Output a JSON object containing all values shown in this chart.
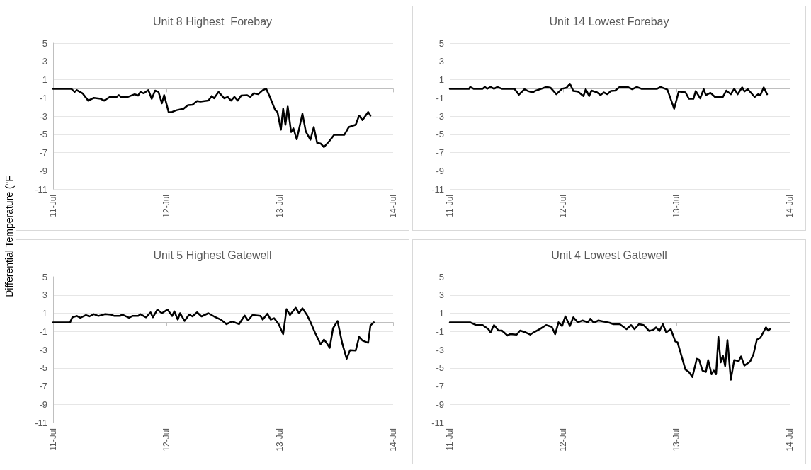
{
  "chart_data": [
    {
      "type": "line",
      "title": "Unit 8 Highest  Forebay",
      "ylabel": "Differential Temperature (°F",
      "xlim": [
        "--07-11",
        "--07-14"
      ],
      "xticks": [
        {
          "value": "--07-11",
          "label": "11-Jul"
        },
        {
          "value": "--07-12",
          "label": "12-Jul"
        },
        {
          "value": "--07-13",
          "label": "13-Jul"
        },
        {
          "value": "--07-14",
          "label": "14-Jul"
        }
      ],
      "ylim": [
        -11,
        5
      ],
      "yticks": [
        -11,
        -9,
        -7,
        -5,
        -3,
        -1,
        1,
        3,
        5
      ],
      "grid": "y",
      "marker": "none",
      "line_style": "solid",
      "series": [
        {
          "color": "#000000",
          "x": [
            "--07-11T00:00",
            "--07-11T03:50",
            "--07-11T04:34",
            "--07-11T05:02",
            "--07-11T06:14",
            "--07-11T07:26",
            "--07-11T08:38",
            "--07-11T10:05",
            "--07-11T10:48",
            "--07-11T12:00",
            "--07-11T13:26",
            "--07-11T13:55",
            "--07-11T14:24",
            "--07-11T15:50",
            "--07-11T17:17",
            "--07-11T18:00",
            "--07-11T18:29",
            "--07-11T19:12",
            "--07-11T20:10",
            "--07-11T20:53",
            "--07-11T21:36",
            "--07-11T22:19",
            "--07-11T23:02",
            "--07-11T23:31",
            "--07-12T00:29",
            "--07-12T01:12",
            "--07-12T02:10",
            "--07-12T03:36",
            "--07-12T04:34",
            "--07-12T05:31",
            "--07-12T06:29",
            "--07-12T07:12",
            "--07-12T08:53",
            "--07-12T09:36",
            "--07-12T10:05",
            "--07-12T11:02",
            "--07-12T12:14",
            "--07-12T12:58",
            "--07-12T13:41",
            "--07-12T14:24",
            "--07-12T15:07",
            "--07-12T15:50",
            "--07-12T17:02",
            "--07-12T17:46",
            "--07-12T18:29",
            "--07-12T19:26",
            "--07-12T20:24",
            "--07-12T21:07",
            "--07-12T21:50",
            "--07-12T23:02",
            "--07-12T23:31",
            "--07-13T00:14",
            "--07-13T00:43",
            "--07-13T01:12",
            "--07-13T01:41",
            "--07-13T02:24",
            "--07-13T02:53",
            "--07-13T03:36",
            "--07-13T04:48",
            "--07-13T05:31",
            "--07-13T06:29",
            "--07-13T07:12",
            "--07-13T07:55",
            "--07-13T08:38",
            "--07-13T09:22",
            "--07-13T10:34",
            "--07-13T11:31",
            "--07-13T13:41",
            "--07-13T14:38",
            "--07-13T16:05",
            "--07-13T16:48",
            "--07-13T17:31",
            "--07-13T18:43",
            "--07-13T19:12"
          ],
          "values": [
            0,
            0,
            -0.35,
            -0.15,
            -0.5,
            -1.3,
            -1.0,
            -1.1,
            -1.3,
            -0.9,
            -0.9,
            -0.7,
            -0.9,
            -0.9,
            -0.6,
            -0.75,
            -0.35,
            -0.5,
            -0.15,
            -1.1,
            -0.2,
            -0.35,
            -1.6,
            -0.7,
            -2.6,
            -2.55,
            -2.35,
            -2.2,
            -1.8,
            -1.75,
            -1.35,
            -1.4,
            -1.3,
            -0.8,
            -1.05,
            -0.35,
            -1.05,
            -0.9,
            -1.3,
            -0.9,
            -1.3,
            -0.75,
            -0.7,
            -0.9,
            -0.5,
            -0.6,
            -0.15,
            0,
            -0.8,
            -2.35,
            -2.55,
            -4.5,
            -2.2,
            -3.95,
            -1.95,
            -4.75,
            -4.35,
            -5.55,
            -2.75,
            -4.7,
            -5.6,
            -4.2,
            -5.95,
            -6.0,
            -6.4,
            -5.7,
            -5.05,
            -5.05,
            -4.2,
            -3.95,
            -2.95,
            -3.45,
            -2.55,
            -2.95
          ]
        }
      ]
    },
    {
      "type": "line",
      "title": "Unit 14 Lowest Forebay",
      "xlim": [
        "--07-11",
        "--07-14"
      ],
      "xticks": [
        {
          "value": "--07-11",
          "label": "11-Jul"
        },
        {
          "value": "--07-12",
          "label": "12-Jul"
        },
        {
          "value": "--07-13",
          "label": "13-Jul"
        },
        {
          "value": "--07-14",
          "label": "14-Jul"
        }
      ],
      "ylim": [
        -11,
        5
      ],
      "yticks": [
        -11,
        -9,
        -7,
        -5,
        -3,
        -1,
        1,
        3,
        5
      ],
      "grid": "y",
      "marker": "none",
      "line_style": "solid",
      "series": [
        {
          "color": "#000000",
          "x": [
            "--07-11T00:00",
            "--07-11T04:05",
            "--07-11T04:19",
            "--07-11T05:02",
            "--07-11T06:58",
            "--07-11T07:26",
            "--07-11T07:55",
            "--07-11T08:38",
            "--07-11T09:22",
            "--07-11T10:05",
            "--07-11T11:02",
            "--07-11T13:41",
            "--07-11T14:38",
            "--07-11T15:50",
            "--07-11T16:34",
            "--07-11T17:31",
            "--07-11T18:14",
            "--07-11T19:26",
            "--07-11T20:24",
            "--07-11T21:22",
            "--07-11T22:34",
            "--07-11T23:46",
            "--07-12T00:43",
            "--07-12T01:26",
            "--07-12T02:10",
            "--07-12T03:07",
            "--07-12T04:19",
            "--07-12T04:48",
            "--07-12T05:31",
            "--07-12T06:00",
            "--07-12T07:12",
            "--07-12T07:55",
            "--07-12T08:38",
            "--07-12T09:22",
            "--07-12T10:05",
            "--07-12T11:02",
            "--07-12T12:00",
            "--07-12T13:41",
            "--07-12T14:38",
            "--07-12T15:36",
            "--07-12T16:34",
            "--07-12T19:55",
            "--07-12T20:38",
            "--07-12T22:05",
            "--07-12T23:31",
            "--07-13T00:29",
            "--07-13T01:55",
            "--07-13T02:38",
            "--07-13T03:36",
            "--07-13T04:05",
            "--07-13T05:02",
            "--07-13T05:46",
            "--07-13T06:14",
            "--07-13T07:12",
            "--07-13T08:10",
            "--07-13T09:50",
            "--07-13T10:34",
            "--07-13T11:31",
            "--07-13T12:14",
            "--07-13T12:58",
            "--07-13T13:55",
            "--07-13T14:24",
            "--07-13T15:07",
            "--07-13T16:34",
            "--07-13T17:17",
            "--07-13T17:46",
            "--07-13T18:29",
            "--07-13T19:12"
          ],
          "values": [
            0,
            0,
            0.2,
            0,
            0,
            0.2,
            0,
            0.2,
            0,
            0.2,
            0,
            0,
            -0.65,
            -0.05,
            -0.25,
            -0.4,
            -0.2,
            0,
            0.2,
            0.1,
            -0.6,
            0,
            0.1,
            0.55,
            -0.25,
            -0.3,
            -0.8,
            -0.05,
            -0.8,
            -0.2,
            -0.4,
            -0.7,
            -0.4,
            -0.6,
            -0.25,
            -0.2,
            0.2,
            0.2,
            -0.05,
            0.2,
            0,
            0,
            0.2,
            -0.1,
            -2.2,
            -0.3,
            -0.4,
            -1.1,
            -1.1,
            -0.25,
            -1.05,
            -0.05,
            -0.7,
            -0.45,
            -0.9,
            -0.9,
            -0.2,
            -0.6,
            0,
            -0.6,
            0.15,
            -0.3,
            -0.05,
            -0.9,
            -0.6,
            -0.7,
            0.15,
            -0.6
          ]
        }
      ]
    },
    {
      "type": "line",
      "title": "Unit 5 Highest Gatewell",
      "xlim": [
        "--07-11",
        "--07-14"
      ],
      "xticks": [
        {
          "value": "--07-11",
          "label": "11-Jul"
        },
        {
          "value": "--07-12",
          "label": "12-Jul"
        },
        {
          "value": "--07-13",
          "label": "13-Jul"
        },
        {
          "value": "--07-14",
          "label": "14-Jul"
        }
      ],
      "ylim": [
        -11,
        5
      ],
      "yticks": [
        -11,
        -9,
        -7,
        -5,
        -3,
        -1,
        1,
        3,
        5
      ],
      "grid": "y",
      "marker": "none",
      "line_style": "solid",
      "series": [
        {
          "color": "#000000",
          "x": [
            "--07-11T00:00",
            "--07-11T03:36",
            "--07-11T04:05",
            "--07-11T05:02",
            "--07-11T05:46",
            "--07-11T06:58",
            "--07-11T07:41",
            "--07-11T08:38",
            "--07-11T09:36",
            "--07-11T11:02",
            "--07-11T12:14",
            "--07-11T12:58",
            "--07-11T14:10",
            "--07-11T14:38",
            "--07-11T16:05",
            "--07-11T16:48",
            "--07-11T18:00",
            "--07-11T18:29",
            "--07-11T19:41",
            "--07-11T20:38",
            "--07-11T21:07",
            "--07-11T22:05",
            "--07-11T23:02",
            "--07-12T00:14",
            "--07-12T01:12",
            "--07-12T01:41",
            "--07-12T02:24",
            "--07-12T02:53",
            "--07-12T03:50",
            "--07-12T04:48",
            "--07-12T05:31",
            "--07-12T06:29",
            "--07-12T07:26",
            "--07-12T08:53",
            "--07-12T10:05",
            "--07-12T11:31",
            "--07-12T12:43",
            "--07-12T13:55",
            "--07-12T15:22",
            "--07-12T16:34",
            "--07-12T17:17",
            "--07-12T18:14",
            "--07-12T19:55",
            "--07-12T20:24",
            "--07-12T21:22",
            "--07-12T22:05",
            "--07-12T22:48",
            "--07-12T23:46",
            "--07-13T00:43",
            "--07-13T01:26",
            "--07-13T02:10",
            "--07-13T03:22",
            "--07-13T04:05",
            "--07-13T04:48",
            "--07-13T05:46",
            "--07-13T06:29",
            "--07-13T07:26",
            "--07-13T08:38",
            "--07-13T09:22",
            "--07-13T09:50",
            "--07-13T10:34",
            "--07-13T11:17",
            "--07-13T12:14",
            "--07-13T13:12",
            "--07-13T14:10",
            "--07-13T14:53",
            "--07-13T16:05",
            "--07-13T16:48",
            "--07-13T17:31",
            "--07-13T18:43",
            "--07-13T19:12",
            "--07-13T19:55"
          ],
          "values": [
            0,
            0,
            0.55,
            0.7,
            0.5,
            0.8,
            0.65,
            0.9,
            0.7,
            0.9,
            0.85,
            0.7,
            0.7,
            0.85,
            0.5,
            0.7,
            0.7,
            0.9,
            0.55,
            1.1,
            0.55,
            1.4,
            1.0,
            1.4,
            0.7,
            1.2,
            0.3,
            1.0,
            0.15,
            0.85,
            0.65,
            1.1,
            0.65,
            1.0,
            0.65,
            0.3,
            -0.2,
            0.1,
            -0.2,
            0.75,
            0.2,
            0.8,
            0.7,
            0.3,
            0.95,
            0.3,
            0.45,
            -0.2,
            -1.3,
            1.45,
            0.8,
            1.6,
            1.0,
            1.55,
            0.8,
            0.05,
            -1.1,
            -2.4,
            -1.9,
            -2.2,
            -2.8,
            -0.65,
            0.15,
            -2.25,
            -4.0,
            -3.05,
            -3.1,
            -1.6,
            -2.0,
            -2.25,
            -0.35,
            0
          ]
        }
      ]
    },
    {
      "type": "line",
      "title": "Unit 4 Lowest Gatewell",
      "xlim": [
        "--07-11",
        "--07-14"
      ],
      "xticks": [
        {
          "value": "--07-11",
          "label": "11-Jul"
        },
        {
          "value": "--07-12",
          "label": "12-Jul"
        },
        {
          "value": "--07-13",
          "label": "13-Jul"
        },
        {
          "value": "--07-14",
          "label": "14-Jul"
        }
      ],
      "ylim": [
        -11,
        5
      ],
      "yticks": [
        -11,
        -9,
        -7,
        -5,
        -3,
        -1,
        1,
        3,
        5
      ],
      "grid": "y",
      "marker": "none",
      "line_style": "solid",
      "series": [
        {
          "color": "#000000",
          "x": [
            "--07-11T00:00",
            "--07-11T04:19",
            "--07-11T05:31",
            "--07-11T06:58",
            "--07-11T08:10",
            "--07-11T08:38",
            "--07-11T09:22",
            "--07-11T10:19",
            "--07-11T11:02",
            "--07-11T12:14",
            "--07-11T12:43",
            "--07-11T14:10",
            "--07-11T14:53",
            "--07-11T16:05",
            "--07-11T17:02",
            "--07-11T17:46",
            "--07-11T19:12",
            "--07-11T20:24",
            "--07-11T21:36",
            "--07-11T22:19",
            "--07-11T23:02",
            "--07-11T23:46",
            "--07-12T00:29",
            "--07-12T01:26",
            "--07-12T02:10",
            "--07-12T03:07",
            "--07-12T04:05",
            "--07-12T05:17",
            "--07-12T05:46",
            "--07-12T06:29",
            "--07-12T07:26",
            "--07-12T09:50",
            "--07-12T10:34",
            "--07-12T12:00",
            "--07-12T13:26",
            "--07-12T14:24",
            "--07-12T15:07",
            "--07-12T16:05",
            "--07-12T17:02",
            "--07-12T18:14",
            "--07-12T19:12",
            "--07-12T19:41",
            "--07-12T20:24",
            "--07-12T21:07",
            "--07-12T21:50",
            "--07-12T22:48",
            "--07-12T23:46",
            "--07-13T00:14",
            "--07-13T01:55",
            "--07-13T02:38",
            "--07-13T03:22",
            "--07-13T04:19",
            "--07-13T04:48",
            "--07-13T05:31",
            "--07-13T06:14",
            "--07-13T06:43",
            "--07-13T07:26",
            "--07-13T07:55",
            "--07-13T08:24",
            "--07-13T08:53",
            "--07-13T09:22",
            "--07-13T09:50",
            "--07-13T10:19",
            "--07-13T10:48",
            "--07-13T11:31",
            "--07-13T12:14",
            "--07-13T13:12",
            "--07-13T13:41",
            "--07-13T14:24",
            "--07-13T15:36",
            "--07-13T16:19",
            "--07-13T17:02",
            "--07-13T17:46",
            "--07-13T18:58",
            "--07-13T19:26",
            "--07-13T19:55"
          ],
          "values": [
            0,
            0,
            -0.3,
            -0.3,
            -0.75,
            -1.1,
            -0.3,
            -0.9,
            -0.9,
            -1.45,
            -1.3,
            -1.35,
            -0.9,
            -1.1,
            -1.35,
            -1.1,
            -0.7,
            -0.3,
            -0.5,
            -1.3,
            0,
            -0.4,
            0.65,
            -0.4,
            0.55,
            0,
            0.2,
            0,
            0.4,
            -0.05,
            0.2,
            -0.05,
            -0.2,
            -0.2,
            -0.75,
            -0.3,
            -0.75,
            -0.2,
            -0.3,
            -0.95,
            -0.8,
            -0.55,
            -0.95,
            -0.2,
            -1.1,
            -0.75,
            -2.1,
            -2.2,
            -5.2,
            -5.45,
            -6.0,
            -4.0,
            -4.1,
            -5.3,
            -5.45,
            -4.15,
            -5.7,
            -5.3,
            -5.7,
            -1.6,
            -4.4,
            -3.65,
            -4.8,
            -1.95,
            -6.3,
            -4.15,
            -4.25,
            -3.75,
            -4.75,
            -4.3,
            -3.5,
            -1.9,
            -1.7,
            -0.55,
            -0.9,
            -0.7
          ]
        }
      ]
    }
  ]
}
